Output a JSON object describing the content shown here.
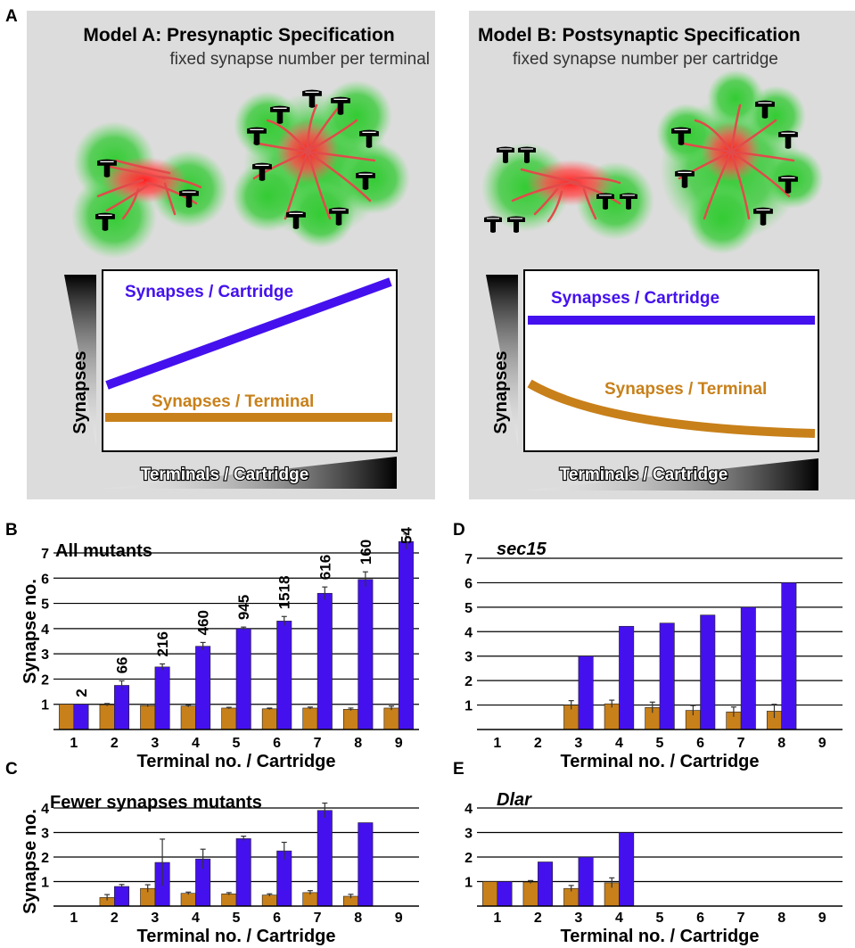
{
  "colors": {
    "per_cartridge": "#4411ee",
    "per_terminal": "#c8801a",
    "panel_bg": "#dcdcdc",
    "green": "#33cc33",
    "red": "#ff4444"
  },
  "panel_a": {
    "label": "A",
    "model_a": {
      "title": "Model A: Presynaptic Specification",
      "subtitle": "fixed synapse number per terminal",
      "ylabel": "Synapses",
      "xlabel": "Terminals / Cartridge",
      "line_cartridge_label": "Synapses / Cartridge",
      "line_terminal_label": "Synapses / Terminal"
    },
    "model_b": {
      "title": "Model B: Postsynaptic Specification",
      "subtitle": "fixed synapse number per cartridge",
      "ylabel": "Synapses",
      "xlabel": "Terminals / Cartridge",
      "line_cartridge_label": "Synapses / Cartridge",
      "line_terminal_label": "Synapses / Terminal"
    }
  },
  "chart_data": [
    {
      "panel": "B",
      "type": "bar",
      "title": "All mutants",
      "italic_title": false,
      "xlabel": "Terminal no. / Cartridge",
      "ylabel": "Synapse no.",
      "ylim": [
        0,
        7
      ],
      "yticks": [
        1,
        2,
        3,
        4,
        5,
        6,
        7
      ],
      "categories": [
        "1",
        "2",
        "3",
        "4",
        "5",
        "6",
        "7",
        "8",
        "9"
      ],
      "series": [
        {
          "values": [
            1.0,
            0.98,
            0.95,
            0.93,
            0.85,
            0.82,
            0.85,
            0.8,
            0.85
          ],
          "errors": [
            0,
            0.05,
            0.05,
            0.04,
            0.03,
            0.03,
            0.04,
            0.05,
            0.08
          ]
        },
        {
          "values": [
            1.0,
            1.75,
            2.48,
            3.3,
            4.0,
            4.3,
            5.4,
            5.95,
            7.45
          ],
          "errors": [
            0,
            0.18,
            0.12,
            0.15,
            0.06,
            0.18,
            0.25,
            0.3,
            0.3
          ]
        }
      ],
      "bar_labels": [
        "2",
        "66",
        "216",
        "460",
        "945",
        "1518",
        "616",
        "160",
        "54"
      ]
    },
    {
      "panel": "C",
      "type": "bar",
      "title": "Fewer synapses mutants",
      "italic_title": false,
      "xlabel": "Terminal no. / Cartridge",
      "ylabel": "Synapse no.",
      "ylim": [
        0,
        4
      ],
      "yticks": [
        1,
        2,
        3,
        4
      ],
      "categories": [
        "1",
        "2",
        "3",
        "4",
        "5",
        "6",
        "7",
        "8",
        "9"
      ],
      "series": [
        {
          "values": [
            null,
            0.35,
            0.72,
            0.52,
            0.5,
            0.45,
            0.55,
            0.4,
            null
          ],
          "errors": [
            0,
            0.12,
            0.15,
            0.05,
            0.05,
            0.05,
            0.08,
            0.08,
            0
          ]
        },
        {
          "values": [
            null,
            0.8,
            1.78,
            1.92,
            2.75,
            2.25,
            3.9,
            3.4,
            null
          ],
          "errors": [
            0,
            0.08,
            0.95,
            0.4,
            0.1,
            0.35,
            0.3,
            0,
            0
          ]
        }
      ]
    },
    {
      "panel": "D",
      "type": "bar",
      "title": "sec15",
      "italic_title": true,
      "xlabel": "Terminal no. / Cartridge",
      "ylabel": "",
      "ylim": [
        0,
        7
      ],
      "yticks": [
        1,
        2,
        3,
        4,
        5,
        6,
        7
      ],
      "categories": [
        "1",
        "2",
        "3",
        "4",
        "5",
        "6",
        "7",
        "8",
        "9"
      ],
      "series": [
        {
          "values": [
            null,
            null,
            1.0,
            1.05,
            0.9,
            0.78,
            0.72,
            0.75,
            null
          ],
          "errors": [
            0,
            0,
            0.18,
            0.15,
            0.22,
            0.2,
            0.2,
            0.28,
            0
          ]
        },
        {
          "values": [
            null,
            null,
            3.0,
            4.22,
            4.35,
            4.68,
            5.0,
            6.0,
            null
          ],
          "errors": [
            0,
            0,
            0,
            0,
            0,
            0,
            0,
            0,
            0
          ]
        }
      ]
    },
    {
      "panel": "E",
      "type": "bar",
      "title": "Dlar",
      "italic_title": true,
      "xlabel": "Terminal no. / Cartridge",
      "ylabel": "",
      "ylim": [
        0,
        4
      ],
      "yticks": [
        1,
        2,
        3,
        4
      ],
      "categories": [
        "1",
        "2",
        "3",
        "4",
        "5",
        "6",
        "7",
        "8",
        "9"
      ],
      "series": [
        {
          "values": [
            1.0,
            0.98,
            0.72,
            0.95,
            null,
            null,
            null,
            null,
            null
          ],
          "errors": [
            0,
            0.06,
            0.12,
            0.2,
            0,
            0,
            0,
            0,
            0
          ]
        },
        {
          "values": [
            1.0,
            1.8,
            2.0,
            3.0,
            null,
            null,
            null,
            null,
            null
          ],
          "errors": [
            0,
            0,
            0,
            0,
            0,
            0,
            0,
            0,
            0
          ]
        }
      ]
    }
  ]
}
